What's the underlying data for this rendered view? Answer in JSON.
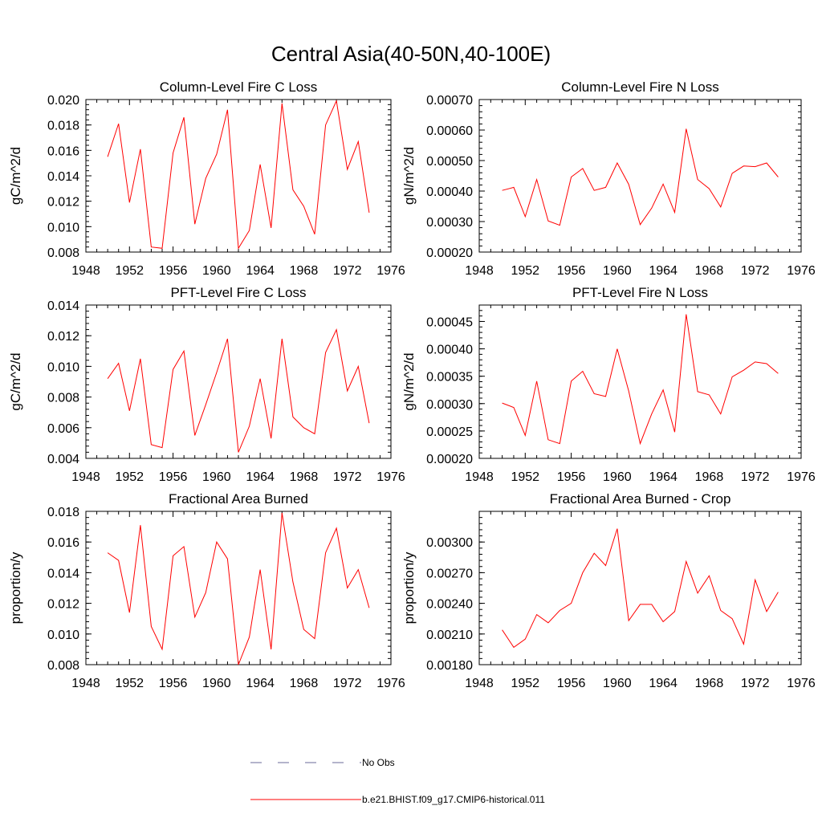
{
  "figure": {
    "title": "Central Asia(40-50N,40-100E)",
    "line_color": "#ff0000",
    "obs_color": "#6a6a9a",
    "legend": [
      {
        "label": "No Obs",
        "style": "dashed"
      },
      {
        "label": "b.e21.BHIST.f09_g17.CMIP6-historical.011",
        "style": "solid"
      }
    ]
  },
  "chart_data": [
    {
      "type": "line",
      "title": "Column-Level Fire C Loss",
      "ylabel": "gC/m^2/d",
      "xlim": [
        1948,
        1976
      ],
      "xticks": [
        "1948",
        "1952",
        "1956",
        "1960",
        "1964",
        "1968",
        "1972",
        "1976"
      ],
      "ylim": [
        0.008,
        0.02
      ],
      "yticks": [
        "0.008",
        "0.010",
        "0.012",
        "0.014",
        "0.016",
        "0.018",
        "0.020"
      ],
      "x": [
        1950,
        1951,
        1952,
        1953,
        1954,
        1955,
        1956,
        1957,
        1958,
        1959,
        1960,
        1961,
        1962,
        1963,
        1964,
        1965,
        1966,
        1967,
        1968,
        1969,
        1970,
        1971,
        1972,
        1973,
        1974
      ],
      "series": [
        {
          "values": [
            0.0155,
            0.0181,
            0.0119,
            0.0161,
            0.0084,
            0.0083,
            0.0158,
            0.0186,
            0.0102,
            0.0138,
            0.0157,
            0.0192,
            0.0083,
            0.0097,
            0.0149,
            0.0099,
            0.0197,
            0.0129,
            0.0116,
            0.0094,
            0.018,
            0.0199,
            0.0145,
            0.0167,
            0.0111
          ]
        }
      ]
    },
    {
      "type": "line",
      "title": "Column-Level Fire N Loss",
      "ylabel": "gN/m^2/d",
      "xlim": [
        1948,
        1976
      ],
      "xticks": [
        "1948",
        "1952",
        "1956",
        "1960",
        "1964",
        "1968",
        "1972",
        "1976"
      ],
      "ylim": [
        0.0002,
        0.0007
      ],
      "yticks": [
        "0.00020",
        "0.00030",
        "0.00040",
        "0.00050",
        "0.00060",
        "0.00070"
      ],
      "x": [
        1950,
        1951,
        1952,
        1953,
        1954,
        1955,
        1956,
        1957,
        1958,
        1959,
        1960,
        1961,
        1962,
        1963,
        1964,
        1965,
        1966,
        1967,
        1968,
        1969,
        1970,
        1971,
        1972,
        1973,
        1974
      ],
      "series": [
        {
          "values": [
            0.000402,
            0.000412,
            0.000316,
            0.000438,
            0.000302,
            0.000288,
            0.000446,
            0.000474,
            0.000402,
            0.000412,
            0.000492,
            0.000422,
            0.00029,
            0.000344,
            0.000423,
            0.00033,
            0.000604,
            0.000438,
            0.000408,
            0.000348,
            0.000458,
            0.000482,
            0.00048,
            0.000492,
            0.000446
          ]
        }
      ]
    },
    {
      "type": "line",
      "title": "PFT-Level Fire C Loss",
      "ylabel": "gC/m^2/d",
      "xlim": [
        1948,
        1976
      ],
      "xticks": [
        "1948",
        "1952",
        "1956",
        "1960",
        "1964",
        "1968",
        "1972",
        "1976"
      ],
      "ylim": [
        0.004,
        0.014
      ],
      "yticks": [
        "0.004",
        "0.006",
        "0.008",
        "0.010",
        "0.012",
        "0.014"
      ],
      "x": [
        1950,
        1951,
        1952,
        1953,
        1954,
        1955,
        1956,
        1957,
        1958,
        1959,
        1960,
        1961,
        1962,
        1963,
        1964,
        1965,
        1966,
        1967,
        1968,
        1969,
        1970,
        1971,
        1972,
        1973,
        1974
      ],
      "series": [
        {
          "values": [
            0.0092,
            0.0102,
            0.0071,
            0.0105,
            0.0049,
            0.0047,
            0.0098,
            0.011,
            0.0055,
            0.0075,
            0.0096,
            0.0118,
            0.0044,
            0.0061,
            0.0092,
            0.0053,
            0.0118,
            0.0067,
            0.006,
            0.0056,
            0.0109,
            0.0124,
            0.0084,
            0.01,
            0.0063
          ]
        }
      ]
    },
    {
      "type": "line",
      "title": "PFT-Level Fire N Loss",
      "ylabel": "gN/m^2/d",
      "xlim": [
        1948,
        1976
      ],
      "xticks": [
        "1948",
        "1952",
        "1956",
        "1960",
        "1964",
        "1968",
        "1972",
        "1976"
      ],
      "ylim": [
        0.0002,
        0.00048
      ],
      "yticks": [
        "0.00020",
        "0.00025",
        "0.00030",
        "0.00035",
        "0.00040",
        "0.00045"
      ],
      "x": [
        1950,
        1951,
        1952,
        1953,
        1954,
        1955,
        1956,
        1957,
        1958,
        1959,
        1960,
        1961,
        1962,
        1963,
        1964,
        1965,
        1966,
        1967,
        1968,
        1969,
        1970,
        1971,
        1972,
        1973,
        1974
      ],
      "series": [
        {
          "values": [
            0.000301,
            0.000293,
            0.000242,
            0.000341,
            0.000234,
            0.000227,
            0.000341,
            0.000359,
            0.000318,
            0.000313,
            0.0004,
            0.000323,
            0.000227,
            0.000281,
            0.000325,
            0.000248,
            0.000463,
            0.000322,
            0.000316,
            0.000281,
            0.000349,
            0.000361,
            0.000376,
            0.000373,
            0.000355
          ]
        }
      ]
    },
    {
      "type": "line",
      "title": "Fractional Area Burned",
      "ylabel": "proportion/y",
      "xlim": [
        1948,
        1976
      ],
      "xticks": [
        "1948",
        "1952",
        "1956",
        "1960",
        "1964",
        "1968",
        "1972",
        "1976"
      ],
      "ylim": [
        0.008,
        0.018
      ],
      "yticks": [
        "0.008",
        "0.010",
        "0.012",
        "0.014",
        "0.016",
        "0.018"
      ],
      "x": [
        1950,
        1951,
        1952,
        1953,
        1954,
        1955,
        1956,
        1957,
        1958,
        1959,
        1960,
        1961,
        1962,
        1963,
        1964,
        1965,
        1966,
        1967,
        1968,
        1969,
        1970,
        1971,
        1972,
        1973,
        1974
      ],
      "series": [
        {
          "values": [
            0.0153,
            0.0148,
            0.0114,
            0.0171,
            0.0105,
            0.009,
            0.0151,
            0.0157,
            0.0111,
            0.0127,
            0.016,
            0.0149,
            0.008,
            0.0098,
            0.0142,
            0.009,
            0.0179,
            0.0134,
            0.0103,
            0.0097,
            0.0153,
            0.0169,
            0.013,
            0.0142,
            0.0117
          ]
        }
      ]
    },
    {
      "type": "line",
      "title": "Fractional Area Burned - Crop",
      "ylabel": "proportion/y",
      "xlim": [
        1948,
        1976
      ],
      "xticks": [
        "1948",
        "1952",
        "1956",
        "1960",
        "1964",
        "1968",
        "1972",
        "1976"
      ],
      "ylim": [
        0.0018,
        0.0033
      ],
      "yticks": [
        "0.00180",
        "0.00210",
        "0.00240",
        "0.00270",
        "0.00300"
      ],
      "x": [
        1950,
        1951,
        1952,
        1953,
        1954,
        1955,
        1956,
        1957,
        1958,
        1959,
        1960,
        1961,
        1962,
        1963,
        1964,
        1965,
        1966,
        1967,
        1968,
        1969,
        1970,
        1971,
        1972,
        1973,
        1974
      ],
      "series": [
        {
          "values": [
            0.00214,
            0.00197,
            0.00205,
            0.00229,
            0.00221,
            0.00233,
            0.0024,
            0.0027,
            0.00289,
            0.00277,
            0.00313,
            0.00223,
            0.00239,
            0.00239,
            0.00222,
            0.00232,
            0.00281,
            0.0025,
            0.00267,
            0.00233,
            0.00225,
            0.002,
            0.00263,
            0.00232,
            0.00251
          ]
        }
      ]
    }
  ]
}
